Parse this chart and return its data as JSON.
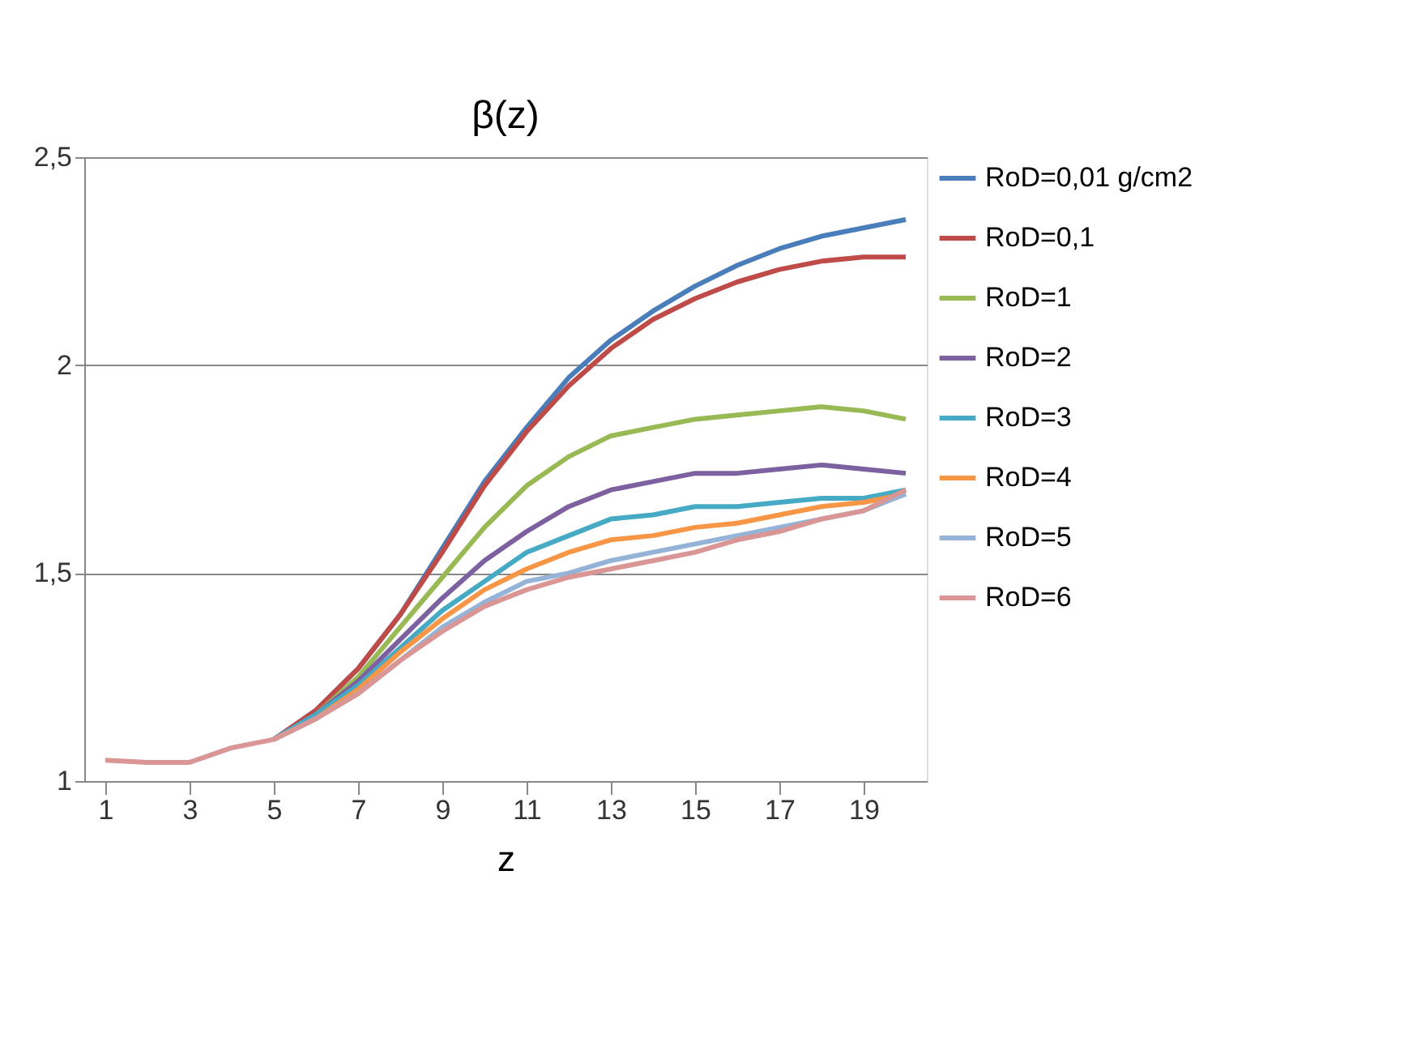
{
  "chart_data": {
    "type": "line",
    "title": "β(z)",
    "xlabel": "z",
    "x": [
      1,
      2,
      3,
      4,
      5,
      6,
      7,
      8,
      9,
      10,
      11,
      12,
      13,
      14,
      15,
      16,
      17,
      18,
      19,
      20
    ],
    "xlim": [
      0.5,
      20.5
    ],
    "xticks": [
      1,
      3,
      5,
      7,
      9,
      11,
      13,
      15,
      17,
      19
    ],
    "ylim": [
      1,
      2.5
    ],
    "yticks": [
      1,
      {
        "value": 1.5,
        "label": "1,5"
      },
      2,
      {
        "value": 2.5,
        "label": "2,5"
      }
    ],
    "grid": "y",
    "legend": "right",
    "line_style": "solid",
    "marker": "none",
    "series": [
      {
        "name": "RoD=0,01 g/cm2",
        "color": "#4a7ebb",
        "values": [
          null,
          null,
          null,
          null,
          1.1,
          1.17,
          1.27,
          1.4,
          1.56,
          1.72,
          1.85,
          1.97,
          2.06,
          2.13,
          2.19,
          2.24,
          2.28,
          2.31,
          2.33,
          2.35
        ]
      },
      {
        "name": "RoD=0,1",
        "color": "#be4b48",
        "values": [
          null,
          null,
          null,
          null,
          1.1,
          1.17,
          1.27,
          1.4,
          1.55,
          1.71,
          1.84,
          1.95,
          2.04,
          2.11,
          2.16,
          2.2,
          2.23,
          2.25,
          2.26,
          2.26
        ]
      },
      {
        "name": "RoD=1",
        "color": "#98b954",
        "values": [
          null,
          null,
          null,
          null,
          1.1,
          1.16,
          1.25,
          1.37,
          1.49,
          1.61,
          1.71,
          1.78,
          1.83,
          1.85,
          1.87,
          1.88,
          1.89,
          1.9,
          1.89,
          1.87
        ]
      },
      {
        "name": "RoD=2",
        "color": "#7d60a0",
        "values": [
          null,
          null,
          null,
          null,
          1.1,
          1.16,
          1.24,
          1.34,
          1.44,
          1.53,
          1.6,
          1.66,
          1.7,
          1.72,
          1.74,
          1.74,
          1.75,
          1.76,
          1.75,
          1.74
        ]
      },
      {
        "name": "RoD=3",
        "color": "#46aac5",
        "values": [
          null,
          null,
          null,
          null,
          1.1,
          1.16,
          1.23,
          1.32,
          1.41,
          1.48,
          1.55,
          1.59,
          1.63,
          1.64,
          1.66,
          1.66,
          1.67,
          1.68,
          1.68,
          1.7
        ]
      },
      {
        "name": "RoD=4",
        "color": "#f79646",
        "values": [
          null,
          null,
          null,
          null,
          1.1,
          1.15,
          1.22,
          1.31,
          1.39,
          1.46,
          1.51,
          1.55,
          1.58,
          1.59,
          1.61,
          1.62,
          1.64,
          1.66,
          1.67,
          1.69
        ]
      },
      {
        "name": "RoD=5",
        "color": "#95b3d7",
        "values": [
          null,
          null,
          null,
          null,
          1.1,
          1.15,
          1.21,
          1.29,
          1.37,
          1.43,
          1.48,
          1.5,
          1.53,
          1.55,
          1.57,
          1.59,
          1.61,
          1.63,
          1.65,
          1.69
        ]
      },
      {
        "name": "RoD=6",
        "color": "#d99694",
        "values": [
          1.05,
          1.045,
          1.045,
          1.08,
          1.1,
          1.15,
          1.21,
          1.29,
          1.36,
          1.42,
          1.46,
          1.49,
          1.51,
          1.53,
          1.55,
          1.58,
          1.6,
          1.63,
          1.65,
          1.7
        ]
      }
    ]
  }
}
